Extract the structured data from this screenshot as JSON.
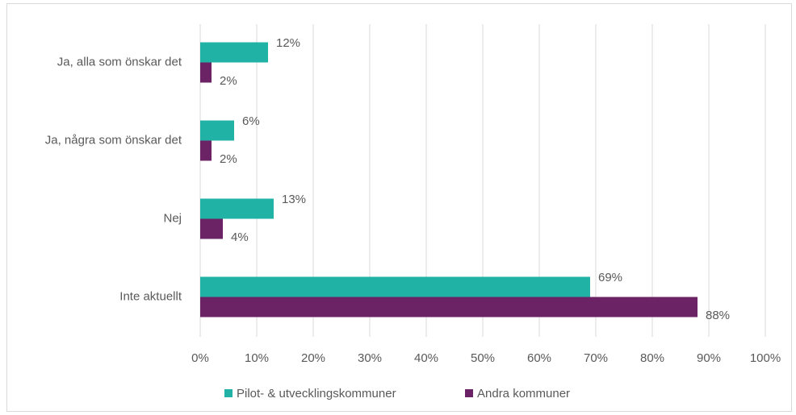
{
  "chart_data": {
    "type": "hbar",
    "categories": [
      "Ja, alla som önskar det",
      "Ja, några som önskar det",
      "Nej",
      "Inte aktuellt"
    ],
    "series": [
      {
        "name": "Pilot- & utvecklingskommuner",
        "color": "#20b2a5",
        "values": [
          12,
          6,
          13,
          69
        ],
        "value_labels": [
          "12%",
          "6%",
          "13%",
          "69%"
        ]
      },
      {
        "name": "Andra kommuner",
        "color": "#6b2366",
        "values": [
          2,
          2,
          4,
          88
        ],
        "value_labels": [
          "2%",
          "2%",
          "4%",
          "88%"
        ]
      }
    ],
    "xlim": [
      0,
      100
    ],
    "xticks": [
      {
        "value": 0,
        "label": "0%"
      },
      {
        "value": 10,
        "label": "10%"
      },
      {
        "value": 20,
        "label": "20%"
      },
      {
        "value": 30,
        "label": "30%"
      },
      {
        "value": 40,
        "label": "40%"
      },
      {
        "value": 50,
        "label": "50%"
      },
      {
        "value": 60,
        "label": "60%"
      },
      {
        "value": 70,
        "label": "70%"
      },
      {
        "value": 80,
        "label": "80%"
      },
      {
        "value": 90,
        "label": "90%"
      },
      {
        "value": 100,
        "label": "100%"
      }
    ],
    "grid": true,
    "legend": "bottom"
  }
}
